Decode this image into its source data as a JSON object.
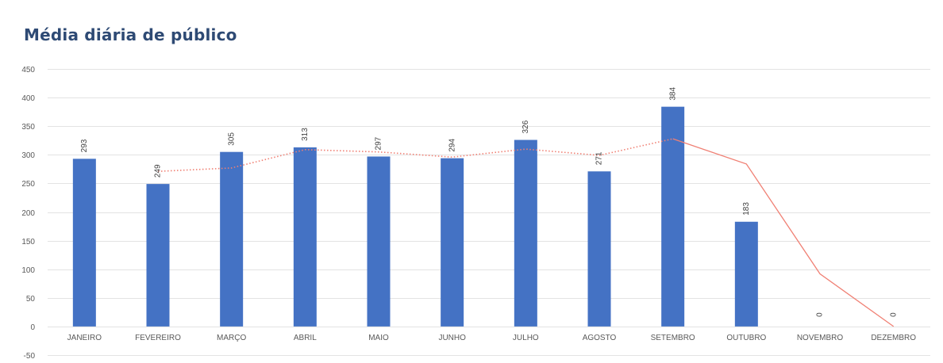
{
  "chart_data": {
    "type": "bar",
    "title": "Média diária de público",
    "categories": [
      "JANEIRO",
      "FEVEREIRO",
      "MARÇO",
      "ABRIL",
      "MAIO",
      "JUNHO",
      "JULHO",
      "AGOSTO",
      "SETEMBRO",
      "OUTUBRO",
      "NOVEMBRO",
      "DEZEMBRO"
    ],
    "series": [
      {
        "values": [
          293,
          249,
          305,
          313,
          297,
          294,
          326,
          271,
          384,
          183,
          0,
          0
        ],
        "color": "#4472c4"
      }
    ],
    "data_labels": [
      "293",
      "249",
      "305",
      "313",
      "297",
      "294",
      "326",
      "271",
      "384",
      "183",
      "0",
      "0"
    ],
    "trendline": {
      "type": "moving_average",
      "period": 2,
      "values": [
        null,
        271,
        277,
        309,
        305,
        296,
        310,
        299,
        328,
        284,
        92,
        0
      ],
      "color": "#f08074"
    },
    "ylim": [
      -50,
      450
    ],
    "yticks": [
      -50,
      0,
      50,
      100,
      150,
      200,
      250,
      300,
      350,
      400,
      450
    ],
    "grid": true,
    "xlabel": "",
    "ylabel": ""
  }
}
